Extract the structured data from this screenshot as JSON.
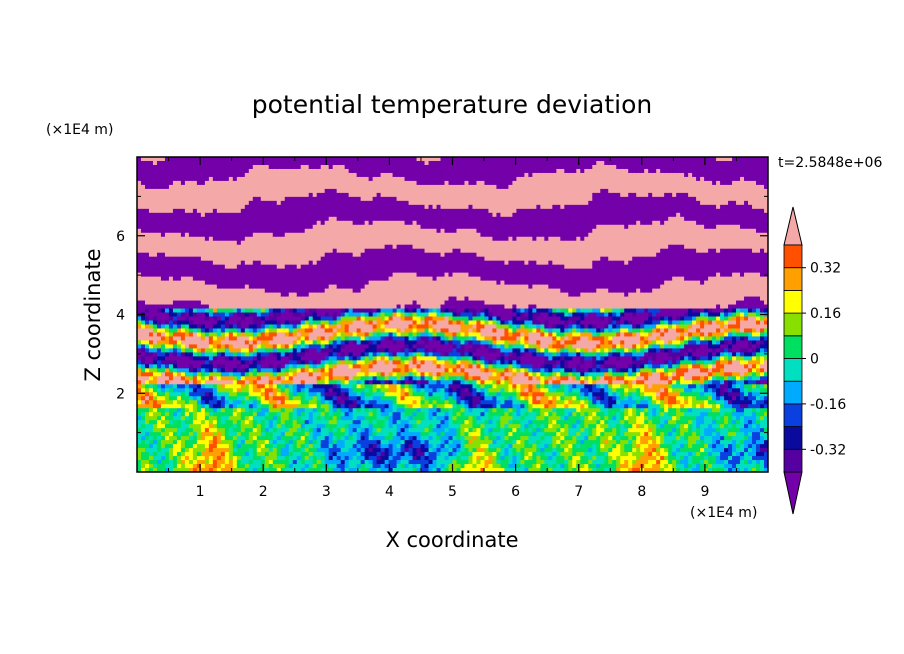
{
  "chart_data": {
    "type": "heatmap",
    "title": "potential temperature deviation",
    "xlabel": "X coordinate",
    "ylabel": "Z coordinate",
    "x_unit": "(×1E4 m)",
    "y_unit": "(×1E4 m)",
    "time_label": "t=2.5848e+06",
    "xlim": [
      0,
      10
    ],
    "ylim": [
      0,
      8
    ],
    "x_ticks": [
      "1",
      "2",
      "3",
      "4",
      "5",
      "6",
      "7",
      "8",
      "9"
    ],
    "y_ticks": [
      "2",
      "4",
      "6"
    ],
    "colorbar": {
      "labels": [
        "0.32",
        "0.16",
        "0",
        "-0.16",
        "-0.32"
      ],
      "label_values": [
        0.32,
        0.16,
        0,
        -0.16,
        -0.32
      ],
      "levels": [
        -0.4,
        -0.32,
        -0.24,
        -0.16,
        -0.08,
        0,
        0.08,
        0.16,
        0.24,
        0.32,
        0.4
      ],
      "under_color": "#7300a8",
      "over_color": "#f4a8a8",
      "colors": [
        "#5500a0",
        "#0a0a9e",
        "#0a40e0",
        "#00aaff",
        "#00e0c0",
        "#00e060",
        "#88e000",
        "#ffff00",
        "#ffa000",
        "#ff5000",
        "#e81010"
      ]
    }
  }
}
